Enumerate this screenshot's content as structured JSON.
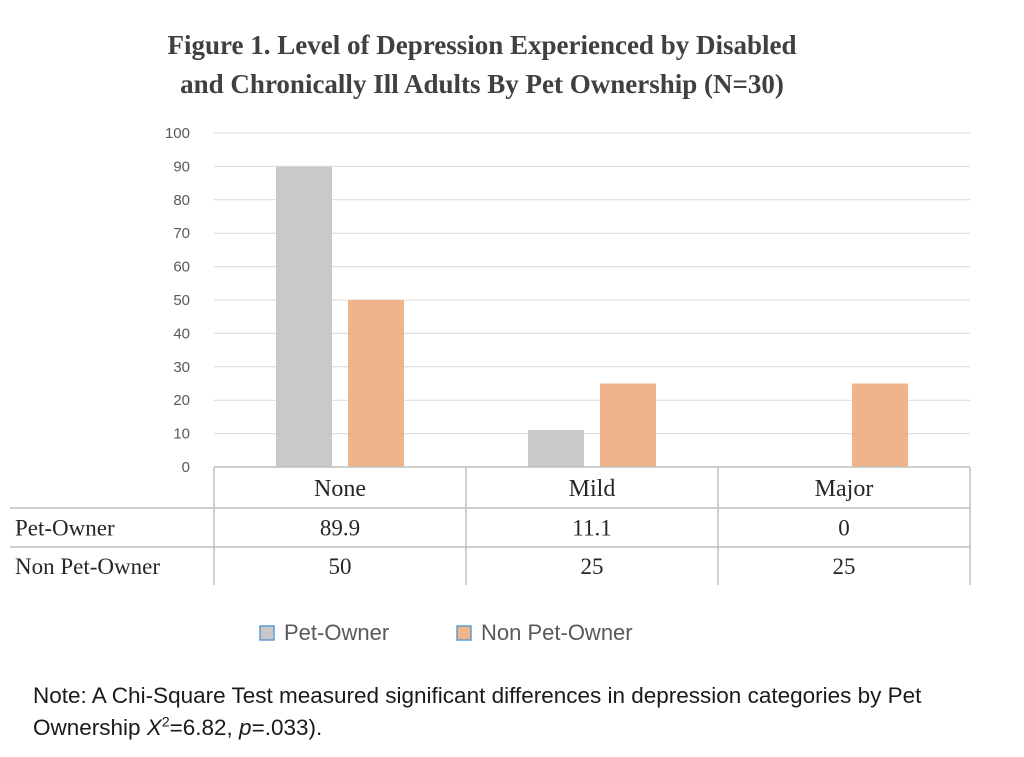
{
  "chart_data": {
    "type": "bar",
    "title_lines": [
      "Figure 1. Level of Depression Experienced by Disabled",
      "and Chronically Ill Adults By Pet Ownership (N=30)"
    ],
    "categories": [
      "None",
      "Mild",
      "Major"
    ],
    "series": [
      {
        "name": "Pet-Owner",
        "values": [
          89.9,
          11.1,
          0
        ],
        "display_values": [
          "89.9",
          "11.1",
          "0"
        ],
        "color": "#c9c9c9"
      },
      {
        "name": "Non Pet-Owner",
        "values": [
          50,
          25,
          25
        ],
        "display_values": [
          "50",
          "25",
          "25"
        ],
        "color": "#f0b48a"
      }
    ],
    "ylim": [
      0,
      100
    ],
    "yticks": [
      "0",
      "10",
      "20",
      "30",
      "40",
      "50",
      "60",
      "70",
      "80",
      "90",
      "100"
    ],
    "grid": true,
    "legend_position": "bottom",
    "data_table": true
  },
  "note": {
    "prefix": "Note: A Chi-Square Test measured significant differences in depression categories by Pet Ownership ",
    "stat_symbol": "X",
    "stat_sup": "2",
    "stat_value": "=6.82, ",
    "p_symbol": "p",
    "p_value": "=.033)."
  }
}
